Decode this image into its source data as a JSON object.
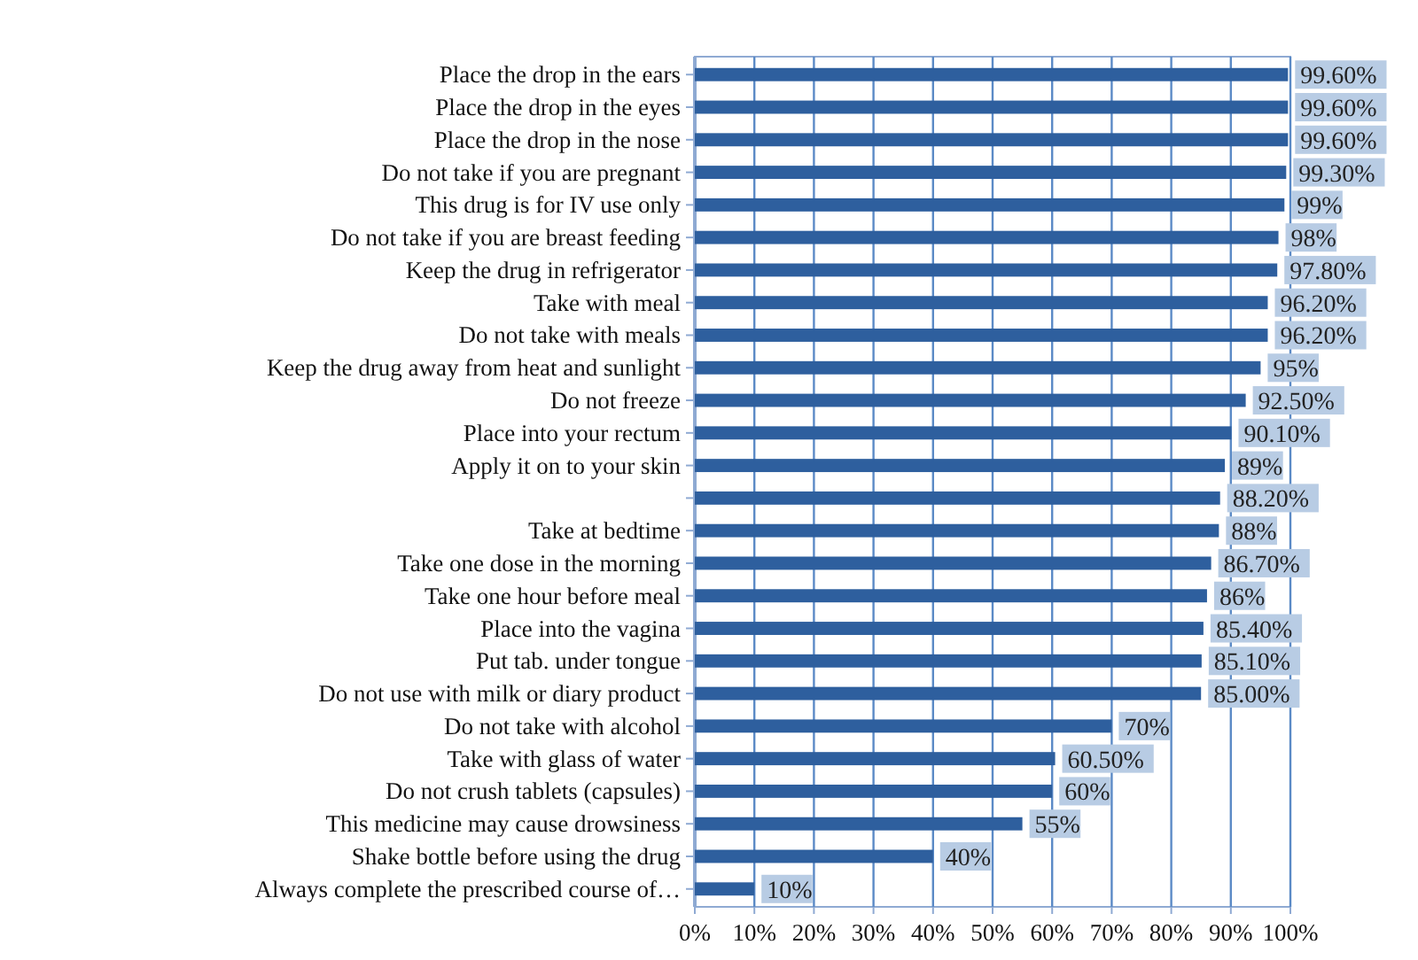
{
  "chart_data": {
    "type": "bar",
    "orientation": "horizontal",
    "categories": [
      "Place the drop in the ears",
      "Place the drop in the eyes",
      "Place the drop in the  nose",
      "Do not take if you are pregnant",
      "This  drug is for IV use only",
      "Do not take if you are breast feeding",
      "Keep the drug in refrigerator",
      "Take with meal",
      "Do not take with meals",
      "Keep the drug away from heat and sunlight",
      "Do not freeze",
      "Place into your rectum",
      "Apply it on to your skin",
      null,
      "Take at bedtime",
      "Take one dose in the morning",
      "Take  one hour before meal",
      "Place into the vagina",
      "Put tab. under tongue",
      "Do not use with milk or diary product",
      "Do not take with alcohol",
      "Take with glass of water",
      "Do not crush tablets (capsules)",
      "This medicine may cause drowsiness",
      "Shake bottle before using the drug",
      "Always complete the prescribed course of…"
    ],
    "values": [
      99.6,
      99.6,
      99.6,
      99.3,
      99,
      98,
      97.8,
      96.2,
      96.2,
      95,
      92.5,
      90.1,
      89,
      88.2,
      88,
      86.7,
      86,
      85.4,
      85.1,
      85,
      70,
      60.5,
      60,
      55,
      40,
      10
    ],
    "value_labels": [
      "99.60%",
      "99.60%",
      "99.60%",
      "99.30%",
      "99%",
      "98%",
      "97.80%",
      "96.20%",
      "96.20%",
      "95%",
      "92.50%",
      "90.10%",
      "89%",
      "88.20%",
      "88%",
      "86.70%",
      "86%",
      "85.40%",
      "85.10%",
      "85.00%",
      "70%",
      "60.50%",
      "60%",
      "55%",
      "40%",
      "10%"
    ],
    "color": "#2e5f9e",
    "xlim": [
      0,
      100
    ],
    "xticks": [
      {
        "value": 0,
        "label": "0%"
      },
      {
        "value": 10,
        "label": "10%"
      },
      {
        "value": 20,
        "label": "20%"
      },
      {
        "value": 30,
        "label": "30%"
      },
      {
        "value": 40,
        "label": "40%"
      },
      {
        "value": 50,
        "label": "50%"
      },
      {
        "value": 60,
        "label": "60%"
      },
      {
        "value": 70,
        "label": "70%"
      },
      {
        "value": 80,
        "label": "80%"
      },
      {
        "value": 90,
        "label": "90%"
      },
      {
        "value": 100,
        "label": "100%"
      }
    ],
    "grid": "x"
  }
}
